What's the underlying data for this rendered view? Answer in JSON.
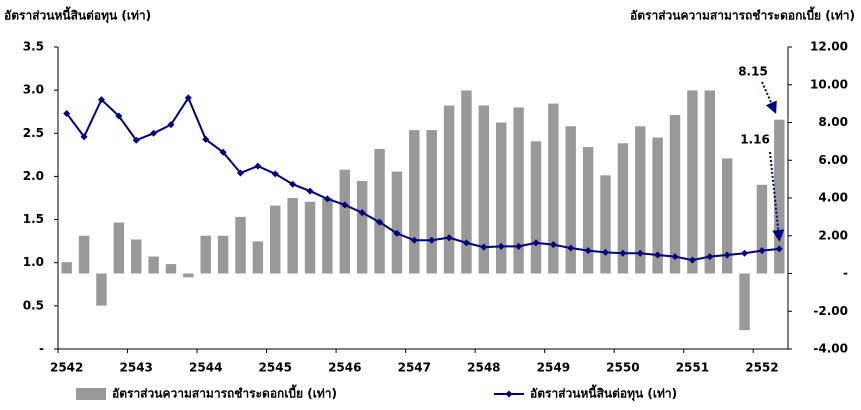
{
  "chart_data": {
    "type": "bar_line",
    "y_axis_label": "อัตราส่วนหนี้สินต่อทุน (เท่า)",
    "y2_axis_label": "อัตราส่วนความสามารถชำระดอกเบี้ย (เท่า)",
    "categories": [
      "2542",
      null,
      null,
      null,
      "2543",
      null,
      null,
      null,
      "2544",
      null,
      null,
      null,
      "2545",
      null,
      null,
      null,
      "2546",
      null,
      null,
      null,
      "2547",
      null,
      null,
      null,
      "2548",
      null,
      null,
      null,
      "2549",
      null,
      null,
      null,
      "2550",
      null,
      null,
      null,
      "2551",
      null,
      null,
      null,
      "2552",
      null
    ],
    "series": [
      {
        "name": "อัตราส่วนความสามารถชำระดอกเบี้ย (เท่า)",
        "type": "bar",
        "axis": "y2",
        "color": "#999999",
        "values": [
          0.6,
          2.0,
          -1.7,
          2.7,
          1.8,
          0.9,
          0.5,
          -0.2,
          2.0,
          2.0,
          3.0,
          1.7,
          3.6,
          4.0,
          3.8,
          4.0,
          5.5,
          4.9,
          6.6,
          5.4,
          7.6,
          7.6,
          8.9,
          9.7,
          8.9,
          8.0,
          8.8,
          7.0,
          9.0,
          7.8,
          6.7,
          5.2,
          6.9,
          7.8,
          7.2,
          8.4,
          9.7,
          9.7,
          6.1,
          -3.0,
          4.7,
          8.15
        ]
      },
      {
        "name": "อัตราส่วนหนี้สินต่อทุน (เท่า)",
        "type": "line",
        "axis": "y",
        "color": "#000080",
        "values": [
          2.73,
          2.46,
          2.89,
          2.7,
          2.42,
          2.5,
          2.6,
          2.91,
          2.43,
          2.28,
          2.04,
          2.12,
          2.03,
          1.91,
          1.83,
          1.74,
          1.67,
          1.58,
          1.47,
          1.34,
          1.26,
          1.26,
          1.29,
          1.23,
          1.18,
          1.19,
          1.19,
          1.23,
          1.21,
          1.17,
          1.14,
          1.12,
          1.11,
          1.11,
          1.09,
          1.07,
          1.03,
          1.07,
          1.09,
          1.11,
          1.14,
          1.16
        ]
      }
    ],
    "ylim": [
      0,
      3.5
    ],
    "yticks": [
      {
        "value": 0,
        "label": "-"
      },
      0.5,
      {
        "value": 1,
        "label": "1.0"
      },
      1.5,
      {
        "value": 2,
        "label": "2.0"
      },
      2.5,
      {
        "value": 3,
        "label": "3.0"
      },
      3.5
    ],
    "y2lim": [
      -4,
      12
    ],
    "y2ticks": [
      {
        "value": -4,
        "label": "-4.00"
      },
      {
        "value": -2,
        "label": "-2.00"
      },
      {
        "value": 0,
        "label": "-"
      },
      {
        "value": 2,
        "label": "2.00"
      },
      {
        "value": 4,
        "label": "4.00"
      },
      {
        "value": 6,
        "label": "6.00"
      },
      {
        "value": 8,
        "label": "8.00"
      },
      {
        "value": 10,
        "label": "10.00"
      },
      {
        "value": 12,
        "label": "12.00"
      }
    ],
    "annotations": [
      "8.15",
      "1.16"
    ]
  }
}
